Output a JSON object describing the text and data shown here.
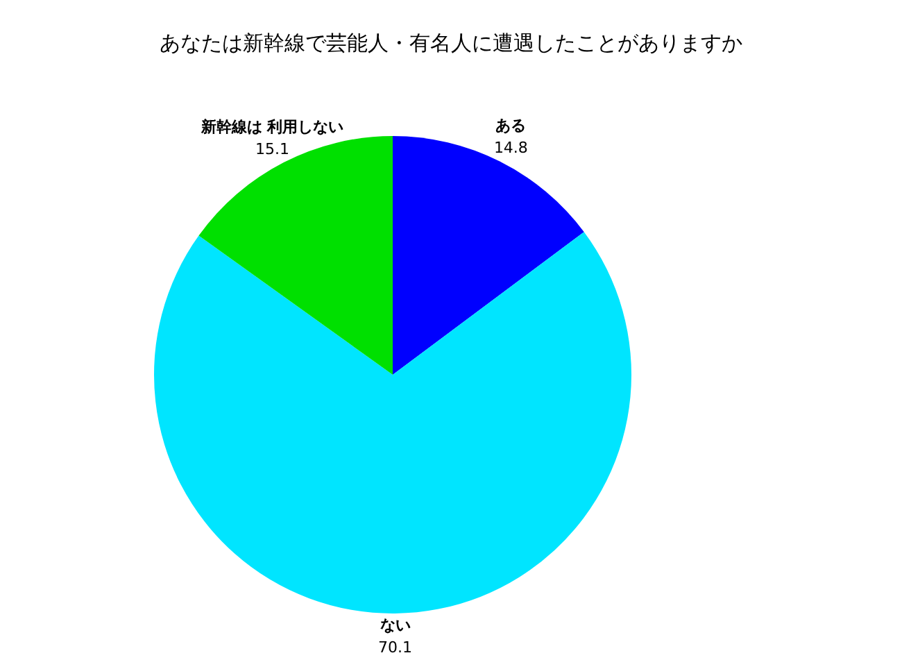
{
  "chart_data": {
    "type": "pie",
    "title": "あなたは新幹線で芸能人・有名人に遭遇したことがありますか",
    "categories": [
      "ある",
      "ない",
      "新幹線は 利用しない"
    ],
    "values": [
      14.8,
      70.1,
      15.1
    ],
    "colors": [
      "#0000ff",
      "#00e5ff",
      "#00e000"
    ],
    "data_labels": true
  }
}
